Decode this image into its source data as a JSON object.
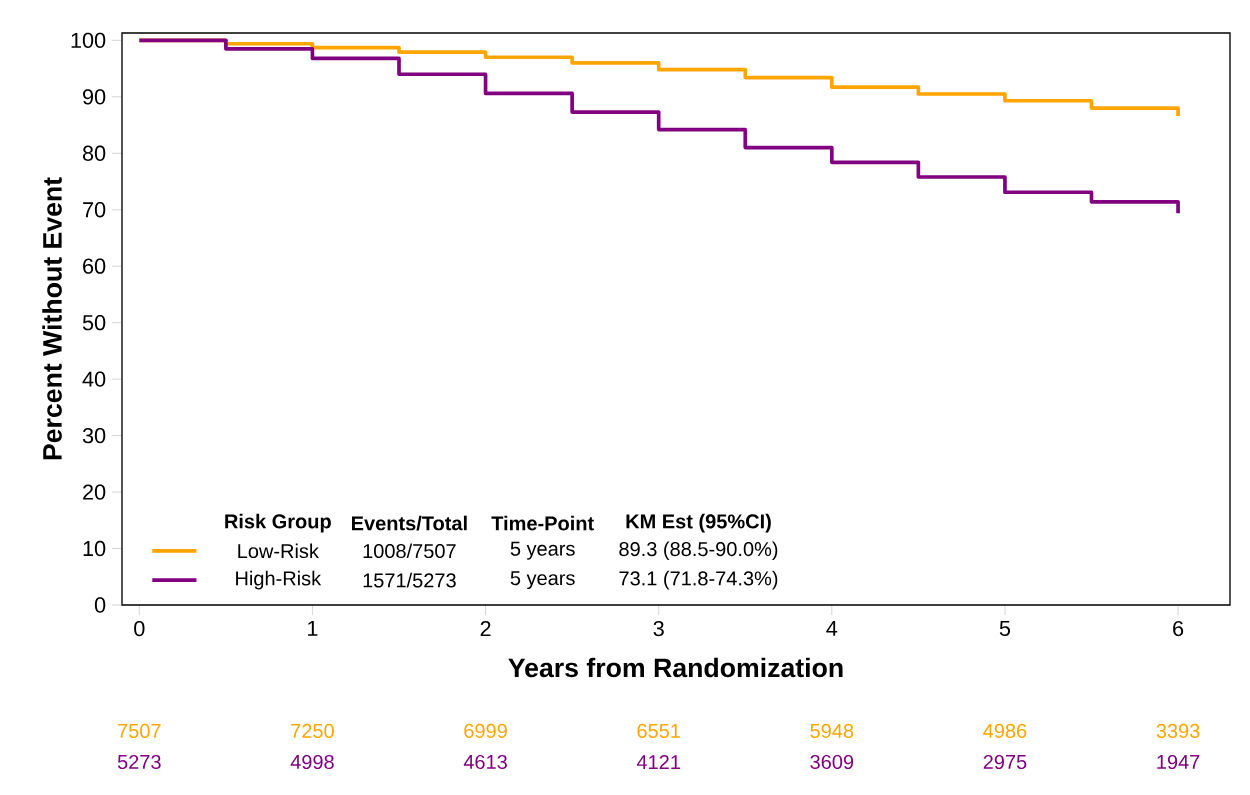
{
  "chart_data": {
    "type": "step",
    "xlabel": "Years from Randomization",
    "ylabel": "Percent Without Event",
    "xlim": [
      -0.1,
      6.3
    ],
    "ylim": [
      0,
      101.3
    ],
    "xticks": [
      0,
      1,
      2,
      3,
      4,
      5,
      6
    ],
    "yticks": [
      0,
      10,
      20,
      30,
      40,
      50,
      60,
      70,
      80,
      90,
      100
    ],
    "grid": false,
    "legend": "bottom left",
    "series": [
      {
        "name": "Low-Risk",
        "color": "#ffa500",
        "x": [
          0,
          0.5,
          1,
          1.5,
          2,
          2.5,
          3,
          3.5,
          4,
          4.5,
          5,
          5.5,
          6
        ],
        "values": [
          100,
          99.4,
          98.7,
          97.9,
          97.0,
          96.0,
          94.8,
          93.4,
          91.7,
          90.5,
          89.3,
          88.0,
          86.6
        ]
      },
      {
        "name": "High-Risk",
        "color": "#800080",
        "x": [
          0,
          0.5,
          1,
          1.5,
          2,
          2.5,
          3,
          3.5,
          4,
          4.5,
          5,
          5.5,
          6
        ],
        "values": [
          100,
          98.5,
          96.8,
          94.0,
          90.6,
          87.3,
          84.2,
          81.0,
          78.4,
          75.8,
          73.1,
          71.4,
          69.4
        ]
      }
    ],
    "annotations": [
      "Risk Group",
      "Events/Total",
      "Time-Point",
      "KM Est (95%CI)",
      "1008/7507",
      "5 years",
      "89.3 (88.5-90.0%)",
      "1571/5273",
      "5 years",
      "73.1 (71.8-74.3%)",
      "7507",
      "7250",
      "6999",
      "6551",
      "5948",
      "4986",
      "3393",
      "5273",
      "4998",
      "4613",
      "4121",
      "3609",
      "2975",
      "1947"
    ]
  }
}
